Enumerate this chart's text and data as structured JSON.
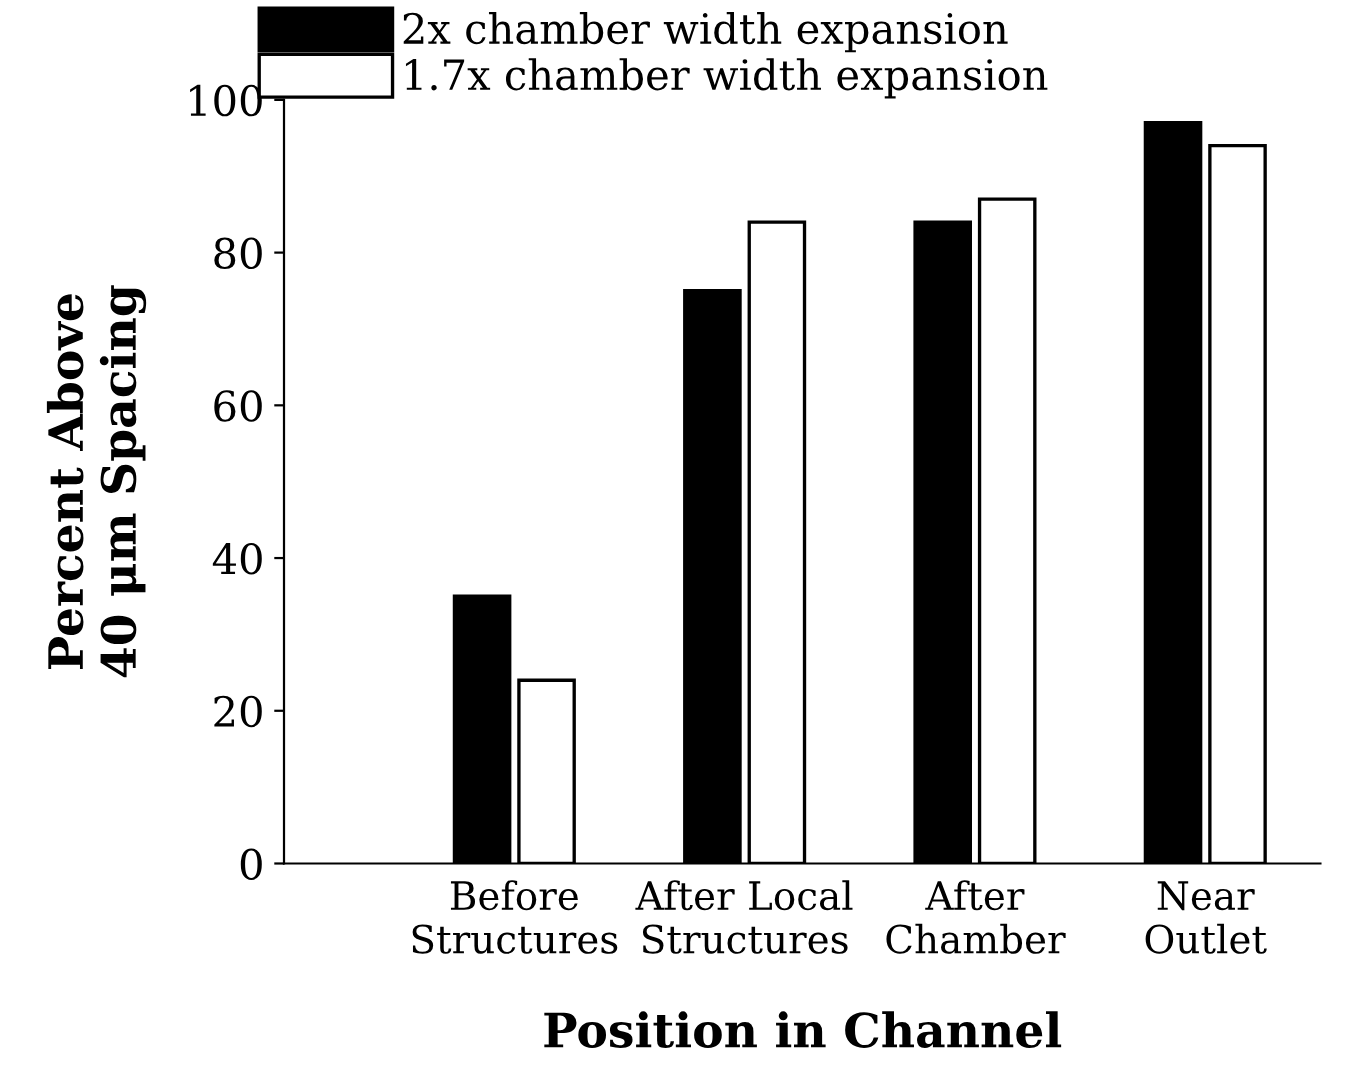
{
  "chart_data": {
    "type": "bar",
    "categories": [
      "Before\nStructures",
      "After Local\nStructures",
      "After\nChamber",
      "Near\nOutlet"
    ],
    "series": [
      {
        "name": "2x chamber width expansion",
        "color": "#000000",
        "values": [
          35,
          75,
          84,
          97
        ]
      },
      {
        "name": "1.7x chamber width expansion",
        "color": "#ffffff",
        "values": [
          24,
          84,
          87,
          94
        ]
      }
    ],
    "xlabel": "Position in Channel",
    "ylabel": "Percent Above\n40 μm Spacing",
    "ylim": [
      0,
      100
    ],
    "yticks": [
      0,
      20,
      40,
      60,
      80,
      100
    ],
    "grid": false,
    "legend": "top left"
  }
}
